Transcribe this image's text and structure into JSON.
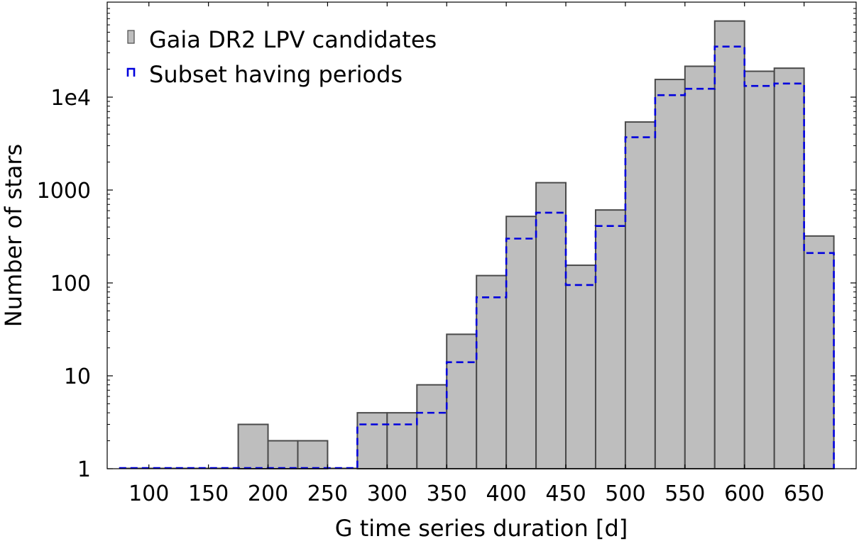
{
  "chart_data": {
    "type": "bar",
    "xlabel": "G time series duration  [d]",
    "ylabel": "Number of stars",
    "x_ticks": [
      100,
      150,
      200,
      250,
      300,
      350,
      400,
      450,
      500,
      550,
      600,
      650
    ],
    "y_ticks": [
      {
        "value": 1,
        "label": "1"
      },
      {
        "value": 10,
        "label": "10"
      },
      {
        "value": 100,
        "label": "100"
      },
      {
        "value": 1000,
        "label": "1000"
      },
      {
        "value": 10000,
        "label": "1e4"
      }
    ],
    "xlim": [
      65,
      695
    ],
    "ylim": [
      1,
      100000
    ],
    "yscale": "log",
    "bin_width": 25,
    "bin_starts": [
      75,
      100,
      125,
      150,
      175,
      200,
      225,
      250,
      275,
      300,
      325,
      350,
      375,
      400,
      425,
      450,
      475,
      500,
      525,
      550,
      575,
      600,
      625,
      650
    ],
    "legend_position": "top-left",
    "series": [
      {
        "name": "Gaia DR2 LPV candidates",
        "style": "bar",
        "color": "#bebebe",
        "edge_color": "#4a4a4a",
        "values": [
          1,
          1,
          1,
          1,
          3,
          2,
          2,
          1,
          4,
          4,
          8,
          28,
          120,
          520,
          1200,
          155,
          610,
          5400,
          15500,
          21500,
          66000,
          19000,
          20500,
          320
        ]
      },
      {
        "name": "Subset having periods",
        "style": "step-dashed",
        "color": "#0000dd",
        "values": [
          1,
          1,
          1,
          1,
          1,
          1,
          1,
          1,
          3,
          3,
          4,
          14,
          70,
          300,
          570,
          95,
          410,
          3700,
          10500,
          12300,
          35000,
          13200,
          14000,
          210
        ]
      }
    ]
  }
}
